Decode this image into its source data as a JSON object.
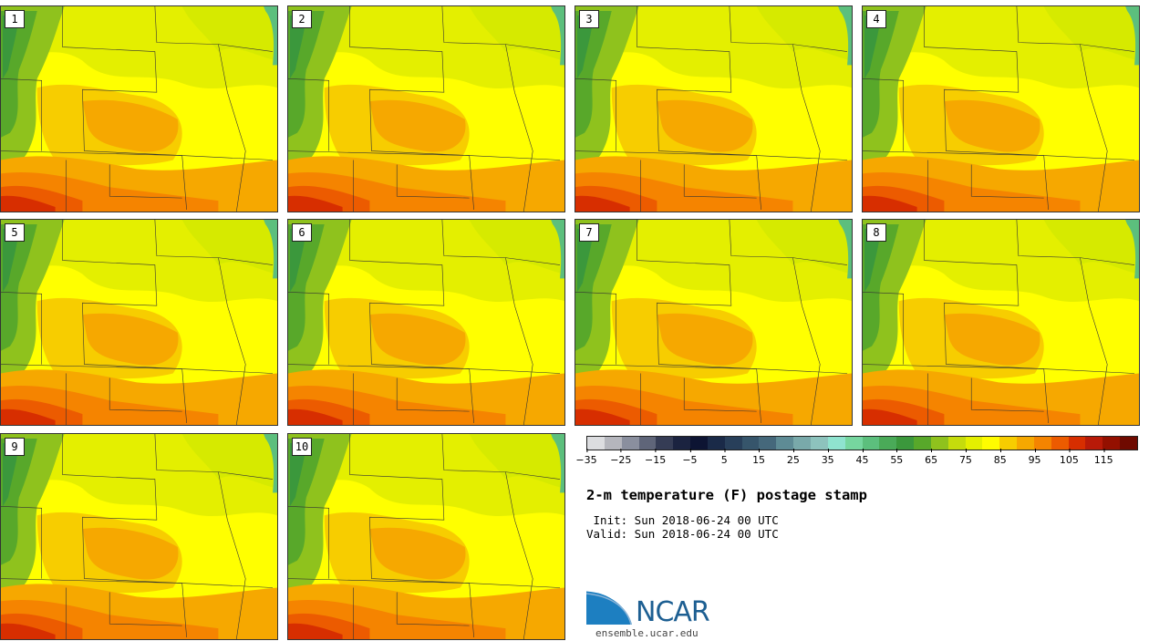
{
  "panels": [
    {
      "label": "1"
    },
    {
      "label": "2"
    },
    {
      "label": "3"
    },
    {
      "label": "4"
    },
    {
      "label": "5"
    },
    {
      "label": "6"
    },
    {
      "label": "7"
    },
    {
      "label": "8"
    },
    {
      "label": "9"
    },
    {
      "label": "10"
    }
  ],
  "colorbar": {
    "colors": [
      "#dcdde0",
      "#b5b6bd",
      "#8a8f9e",
      "#5f6579",
      "#353c55",
      "#1b2340",
      "#0d1433",
      "#1a2a48",
      "#283f5a",
      "#36556b",
      "#45687b",
      "#5e8b95",
      "#79a9aa",
      "#8dc3bd",
      "#8fe3cf",
      "#76d69f",
      "#5cbf7d",
      "#4aaa58",
      "#3b983c",
      "#58a82a",
      "#8fc21d",
      "#c5dc0c",
      "#e4ef00",
      "#fffc00",
      "#f7cd00",
      "#f6a800",
      "#f58400",
      "#ec5b00",
      "#d72e00",
      "#b81a08",
      "#941000",
      "#6f0a00"
    ],
    "tick_labels": [
      "−35",
      "−25",
      "−15",
      "−5",
      "5",
      "15",
      "25",
      "35",
      "45",
      "55",
      "65",
      "75",
      "85",
      "95",
      "105",
      "115"
    ],
    "min": -35,
    "max": 125
  },
  "title": "2-m temperature (F) postage stamp",
  "init": " Init: Sun 2018-06-24 00 UTC",
  "valid": "Valid: Sun 2018-06-24 00 UTC",
  "logo": {
    "text": "NCAR",
    "site": "ensemble.ucar.edu"
  }
}
